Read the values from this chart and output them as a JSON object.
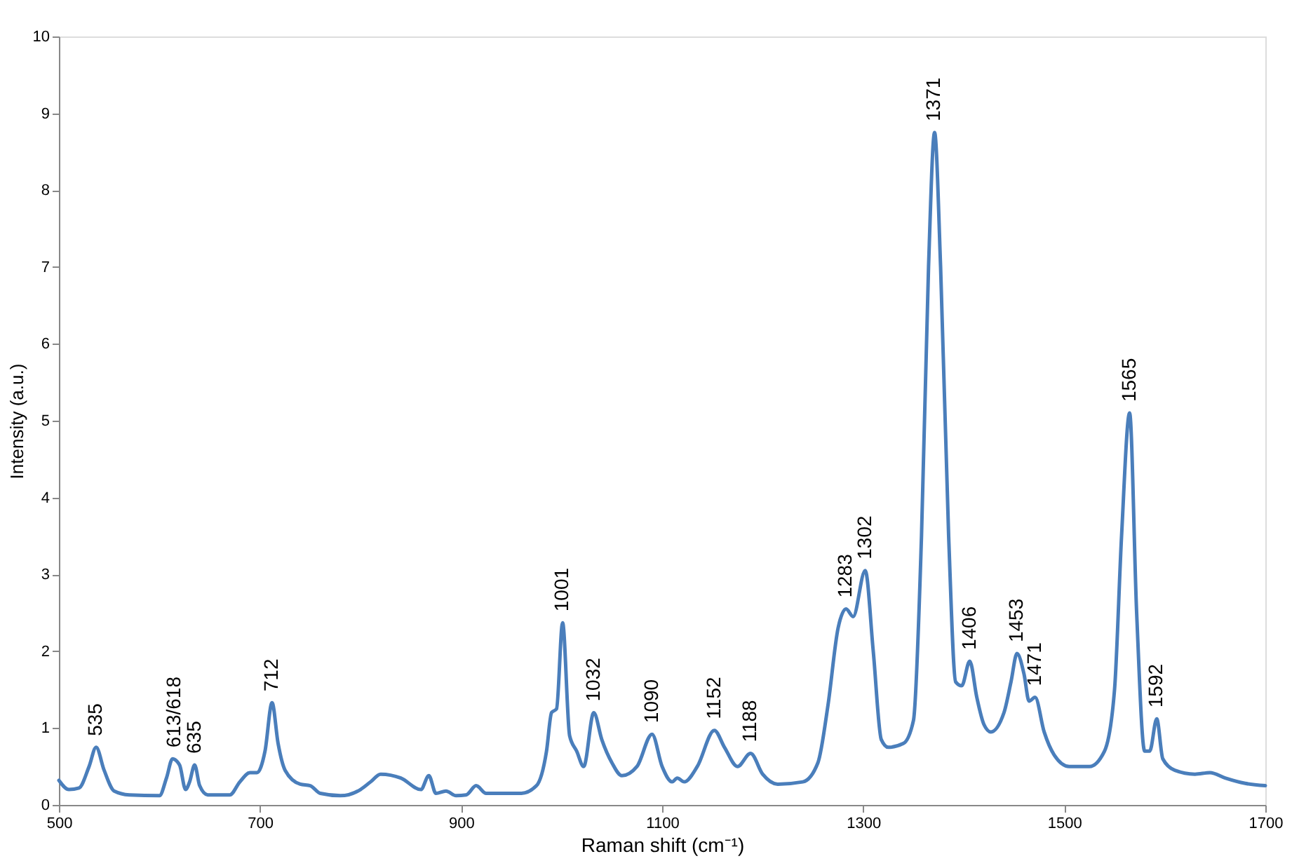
{
  "chart_data": {
    "type": "line",
    "xlabel": "Raman shift (cm⁻¹)",
    "ylabel": "Intensity (a.u.)",
    "xlim": [
      500,
      1700
    ],
    "xticks": [
      500,
      700,
      900,
      1100,
      1300,
      1500,
      1700
    ],
    "ylim": [
      0,
      10
    ],
    "yticks": [
      0,
      1,
      2,
      3,
      4,
      5,
      6,
      7,
      8,
      9,
      10
    ],
    "grid": false,
    "marker": "none",
    "line_style": "solid",
    "series": [
      {
        "color": "#4a7ebb",
        "x": [
          500,
          510,
          520,
          530,
          537,
          545,
          555,
          570,
          600,
          607,
          613,
          620,
          626,
          630,
          635,
          640,
          648,
          670,
          680,
          690,
          697,
          705,
          712,
          718,
          725,
          740,
          750,
          760,
          780,
          800,
          810,
          820,
          840,
          860,
          868,
          875,
          885,
          895,
          905,
          915,
          925,
          960,
          975,
          985,
          990,
          995,
          1001,
          1008,
          1015,
          1022,
          1032,
          1040,
          1050,
          1060,
          1075,
          1090,
          1100,
          1110,
          1115,
          1122,
          1135,
          1152,
          1162,
          1175,
          1188,
          1200,
          1215,
          1240,
          1255,
          1265,
          1275,
          1283,
          1290,
          1302,
          1310,
          1318,
          1325,
          1340,
          1350,
          1358,
          1365,
          1371,
          1377,
          1385,
          1392,
          1398,
          1406,
          1413,
          1420,
          1427,
          1440,
          1447,
          1453,
          1460,
          1465,
          1471,
          1480,
          1490,
          1505,
          1525,
          1540,
          1550,
          1557,
          1565,
          1572,
          1580,
          1585,
          1592,
          1598,
          1610,
          1630,
          1645,
          1660,
          1680,
          1700
        ],
        "values": [
          0.32,
          0.2,
          0.22,
          0.5,
          0.75,
          0.45,
          0.18,
          0.13,
          0.12,
          0.35,
          0.6,
          0.52,
          0.2,
          0.3,
          0.52,
          0.25,
          0.13,
          0.13,
          0.3,
          0.42,
          0.42,
          0.7,
          1.33,
          0.8,
          0.45,
          0.27,
          0.25,
          0.15,
          0.12,
          0.2,
          0.3,
          0.4,
          0.35,
          0.2,
          0.38,
          0.15,
          0.18,
          0.12,
          0.13,
          0.25,
          0.15,
          0.15,
          0.25,
          0.7,
          1.2,
          1.25,
          2.37,
          0.9,
          0.7,
          0.5,
          1.2,
          0.85,
          0.55,
          0.38,
          0.5,
          0.92,
          0.5,
          0.3,
          0.35,
          0.3,
          0.5,
          0.97,
          0.75,
          0.5,
          0.67,
          0.4,
          0.27,
          0.3,
          0.55,
          1.3,
          2.3,
          2.55,
          2.45,
          3.05,
          2.0,
          0.85,
          0.75,
          0.8,
          1.1,
          3.5,
          7.0,
          8.75,
          7.0,
          3.5,
          1.6,
          1.55,
          1.87,
          1.4,
          1.05,
          0.95,
          1.2,
          1.6,
          1.97,
          1.7,
          1.35,
          1.4,
          0.95,
          0.65,
          0.5,
          0.5,
          0.7,
          1.5,
          3.5,
          5.1,
          2.5,
          0.7,
          0.7,
          1.12,
          0.6,
          0.45,
          0.4,
          0.42,
          0.35,
          0.28,
          0.25
        ]
      }
    ],
    "annotations": [
      {
        "text": "535",
        "x": 537,
        "y": 0.75
      },
      {
        "text": "613/618",
        "x": 615,
        "y": 0.6
      },
      {
        "text": "635",
        "x": 635,
        "y": 0.52
      },
      {
        "text": "712",
        "x": 712,
        "y": 1.33
      },
      {
        "text": "1001",
        "x": 1001,
        "y": 2.37
      },
      {
        "text": "1032",
        "x": 1032,
        "y": 1.2
      },
      {
        "text": "1090",
        "x": 1090,
        "y": 0.92
      },
      {
        "text": "1152",
        "x": 1152,
        "y": 0.97
      },
      {
        "text": "1188",
        "x": 1188,
        "y": 0.67
      },
      {
        "text": "1283",
        "x": 1283,
        "y": 2.55
      },
      {
        "text": "1302",
        "x": 1302,
        "y": 3.05
      },
      {
        "text": "1371",
        "x": 1371,
        "y": 8.75
      },
      {
        "text": "1406",
        "x": 1406,
        "y": 1.87
      },
      {
        "text": "1453",
        "x": 1453,
        "y": 1.97
      },
      {
        "text": "1471",
        "x": 1471,
        "y": 1.4
      },
      {
        "text": "1565",
        "x": 1565,
        "y": 5.1
      },
      {
        "text": "1592",
        "x": 1592,
        "y": 1.12
      }
    ]
  }
}
